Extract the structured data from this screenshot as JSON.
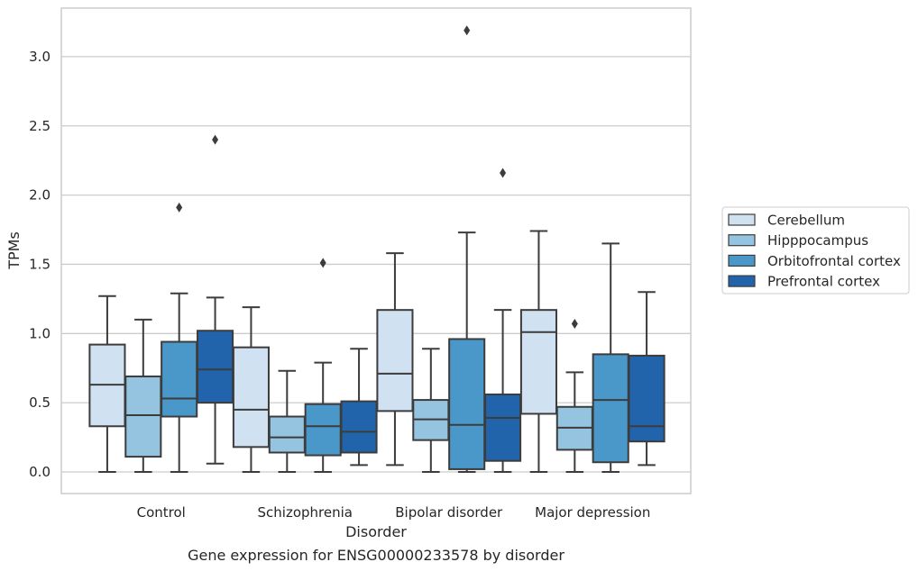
{
  "chart_data": {
    "type": "box",
    "title": "Gene expression for ENSG00000233578 by disorder",
    "xlabel": "Disorder",
    "ylabel": "TPMs",
    "ylim": [
      -0.15,
      3.35
    ],
    "yticks": [
      "0.0",
      "0.5",
      "1.0",
      "1.5",
      "2.0",
      "2.5",
      "3.0"
    ],
    "grid": "horizontal",
    "legend_position": "right",
    "categories": [
      "Control",
      "Schizophrenia",
      "Bipolar disorder",
      "Major depression"
    ],
    "series": [
      {
        "name": "Cerebellum",
        "color": "#d0e1f2",
        "boxes": [
          {
            "whislo": 0.0,
            "q1": 0.33,
            "med": 0.63,
            "q3": 0.92,
            "whishi": 1.27,
            "fliers": []
          },
          {
            "whislo": 0.0,
            "q1": 0.18,
            "med": 0.45,
            "q3": 0.9,
            "whishi": 1.19,
            "fliers": []
          },
          {
            "whislo": 0.05,
            "q1": 0.44,
            "med": 0.71,
            "q3": 1.17,
            "whishi": 1.58,
            "fliers": []
          },
          {
            "whislo": 0.0,
            "q1": 0.42,
            "med": 1.01,
            "q3": 1.17,
            "whishi": 1.74,
            "fliers": []
          }
        ]
      },
      {
        "name": "Hipppocampus",
        "color": "#94c4df",
        "boxes": [
          {
            "whislo": 0.0,
            "q1": 0.11,
            "med": 0.41,
            "q3": 0.69,
            "whishi": 1.1,
            "fliers": []
          },
          {
            "whislo": 0.0,
            "q1": 0.14,
            "med": 0.25,
            "q3": 0.4,
            "whishi": 0.73,
            "fliers": []
          },
          {
            "whislo": 0.0,
            "q1": 0.23,
            "med": 0.38,
            "q3": 0.52,
            "whishi": 0.89,
            "fliers": []
          },
          {
            "whislo": 0.0,
            "q1": 0.16,
            "med": 0.32,
            "q3": 0.47,
            "whishi": 0.72,
            "fliers": [
              1.07
            ]
          }
        ]
      },
      {
        "name": "Orbitofrontal cortex",
        "color": "#4a98c9",
        "boxes": [
          {
            "whislo": 0.0,
            "q1": 0.4,
            "med": 0.53,
            "q3": 0.94,
            "whishi": 1.29,
            "fliers": [
              1.91
            ]
          },
          {
            "whislo": 0.0,
            "q1": 0.12,
            "med": 0.33,
            "q3": 0.49,
            "whishi": 0.79,
            "fliers": [
              1.51
            ]
          },
          {
            "whislo": 0.0,
            "q1": 0.02,
            "med": 0.34,
            "q3": 0.96,
            "whishi": 1.73,
            "fliers": [
              3.19
            ]
          },
          {
            "whislo": 0.0,
            "q1": 0.07,
            "med": 0.52,
            "q3": 0.85,
            "whishi": 1.65,
            "fliers": []
          }
        ]
      },
      {
        "name": "Prefrontal cortex",
        "color": "#2264ab",
        "boxes": [
          {
            "whislo": 0.06,
            "q1": 0.5,
            "med": 0.74,
            "q3": 1.02,
            "whishi": 1.26,
            "fliers": [
              2.4
            ]
          },
          {
            "whislo": 0.05,
            "q1": 0.14,
            "med": 0.29,
            "q3": 0.51,
            "whishi": 0.89,
            "fliers": []
          },
          {
            "whislo": 0.0,
            "q1": 0.08,
            "med": 0.39,
            "q3": 0.56,
            "whishi": 1.17,
            "fliers": [
              2.16
            ]
          },
          {
            "whislo": 0.05,
            "q1": 0.22,
            "med": 0.33,
            "q3": 0.84,
            "whishi": 1.3,
            "fliers": []
          }
        ]
      }
    ]
  }
}
